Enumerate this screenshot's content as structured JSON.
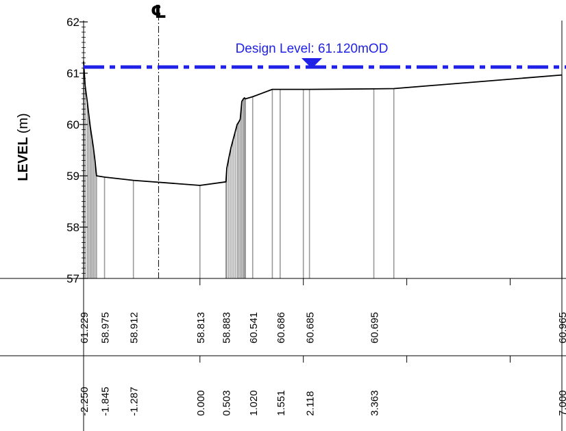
{
  "chart_data": {
    "type": "line",
    "title": "",
    "ylabel_bold": "LEVEL",
    "ylabel_unit": "(m)",
    "ylim": [
      57,
      62
    ],
    "yticks": [
      "57",
      "58",
      "59",
      "60",
      "61",
      "62"
    ],
    "xlim": [
      -2.25,
      7.0
    ],
    "grid": false,
    "centerline": {
      "label": "℄",
      "x": -0.8
    },
    "design_level": {
      "label": "Design Level: 61.120mOD",
      "value": 61.12,
      "color": "#1f22e6"
    },
    "profile": {
      "x": [
        -2.25,
        -2.22,
        -2.18,
        -2.15,
        -2.12,
        -2.09,
        -2.06,
        -2.03,
        -2.0,
        -1.845,
        -1.287,
        0.0,
        0.503,
        0.52,
        0.56,
        0.6,
        0.64,
        0.68,
        0.72,
        0.75,
        0.78,
        0.81,
        0.84,
        0.86,
        0.88,
        1.02,
        1.4,
        1.551,
        2.0,
        2.118,
        3.363,
        3.75,
        7.0
      ],
      "y": [
        61.229,
        60.75,
        60.45,
        60.2,
        59.95,
        59.75,
        59.55,
        59.3,
        59.0,
        58.975,
        58.912,
        58.813,
        58.883,
        59.15,
        59.35,
        59.55,
        59.7,
        59.85,
        60.0,
        60.05,
        60.1,
        60.45,
        60.5,
        60.52,
        60.5,
        60.541,
        60.686,
        60.686,
        60.685,
        60.685,
        60.695,
        60.7,
        60.965
      ]
    },
    "rows": [
      {
        "name": "level",
        "labels": [
          {
            "x": -2.25,
            "text": "61.229"
          },
          {
            "x": -1.845,
            "text": "58.975"
          },
          {
            "x": -1.287,
            "text": "58.912"
          },
          {
            "x": 0.0,
            "text": "58.813"
          },
          {
            "x": 0.503,
            "text": "58.883"
          },
          {
            "x": 1.02,
            "text": "60.541"
          },
          {
            "x": 1.551,
            "text": "60.686"
          },
          {
            "x": 2.118,
            "text": "60.685"
          },
          {
            "x": 3.363,
            "text": "60.695"
          },
          {
            "x": 7.0,
            "text": "60.965"
          }
        ]
      },
      {
        "name": "offset",
        "labels": [
          {
            "x": -2.25,
            "text": "-2.250"
          },
          {
            "x": -1.845,
            "text": "-1.845"
          },
          {
            "x": -1.287,
            "text": "-1.287"
          },
          {
            "x": 0.0,
            "text": "0.000"
          },
          {
            "x": 0.503,
            "text": "0.503"
          },
          {
            "x": 1.02,
            "text": "1.020"
          },
          {
            "x": 1.551,
            "text": "1.551"
          },
          {
            "x": 2.118,
            "text": "2.118"
          },
          {
            "x": 3.363,
            "text": "3.363"
          },
          {
            "x": 7.0,
            "text": "7.000"
          }
        ]
      }
    ],
    "axis_ticks_x": [
      0.0,
      2.0,
      4.0,
      6.0,
      7.0
    ]
  }
}
